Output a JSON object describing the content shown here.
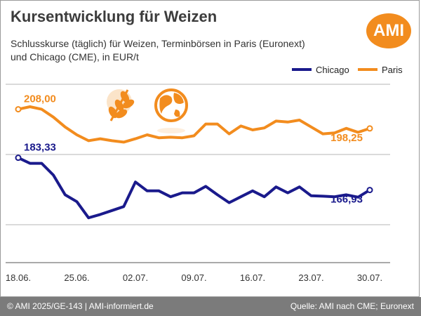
{
  "header": {
    "title": "Kursentwicklung für Weizen",
    "subtitle_line1": "Schlusskurse (täglich) für Weizen, Terminbörsen in Paris (Euronext)",
    "subtitle_line2": "und Chicago (CME), in EUR/t",
    "logo_text": "AMI"
  },
  "footer": {
    "left": "© AMI 2025/GE-143 | AMI-informiert.de",
    "right": "Quelle: AMI nach CME; Euronext"
  },
  "colors": {
    "paris": "#f28c1e",
    "chicago": "#1a1a8c",
    "grid": "#b4b4b4",
    "footer": "#7b7b7b"
  },
  "icons": [
    "wheat-icon",
    "globe-icon"
  ],
  "chart_data": {
    "type": "line",
    "title": "Kursentwicklung für Weizen",
    "ylabel": "EUR/t",
    "ylim": [
      130,
      230
    ],
    "x_ticks": [
      "18.06.",
      "25.06.",
      "02.07.",
      "09.07.",
      "16.07.",
      "23.07.",
      "30.07."
    ],
    "legend": {
      "placement": "top-right",
      "entries": [
        "Chicago",
        "Paris"
      ]
    },
    "grid": "horizontal",
    "series": [
      {
        "name": "Chicago",
        "color": "#1a1a8c",
        "x": [
          0,
          1,
          2,
          3,
          4,
          5,
          6,
          7,
          8,
          9,
          10,
          11,
          12,
          13,
          14,
          15,
          16,
          17,
          18,
          19,
          20,
          21,
          22,
          23,
          24,
          25,
          26,
          27,
          28,
          29,
          30
        ],
        "y": [
          183.33,
          180.5,
          180.5,
          174.5,
          164.5,
          161.0,
          152.8,
          154.5,
          156.5,
          158.5,
          171.0,
          166.5,
          166.5,
          163.5,
          165.5,
          165.5,
          168.8,
          164.5,
          160.5,
          163.5,
          166.5,
          163.5,
          168.5,
          165.5,
          168.5,
          164.0,
          163.8,
          163.5,
          164.5,
          163.3,
          166.93
        ],
        "first_label": "183,33",
        "last_label": "166,93"
      },
      {
        "name": "Paris",
        "color": "#f28c1e",
        "x": [
          0,
          1,
          2,
          3,
          4,
          5,
          6,
          7,
          8,
          9,
          10,
          11,
          12,
          13,
          14,
          15,
          16,
          17,
          18,
          19,
          20,
          21,
          22,
          23,
          24,
          25,
          26,
          27,
          28,
          29,
          30
        ],
        "y": [
          208.0,
          209.3,
          208.0,
          204.0,
          199.0,
          195.0,
          192.0,
          193.0,
          192.0,
          191.3,
          193.0,
          195.0,
          193.5,
          193.8,
          193.5,
          194.5,
          200.5,
          200.5,
          195.5,
          199.5,
          197.5,
          198.5,
          202.0,
          201.5,
          202.5,
          199.0,
          195.5,
          196.0,
          198.3,
          196.3,
          198.25
        ],
        "first_label": "208,00",
        "last_label": "198,25"
      }
    ]
  }
}
